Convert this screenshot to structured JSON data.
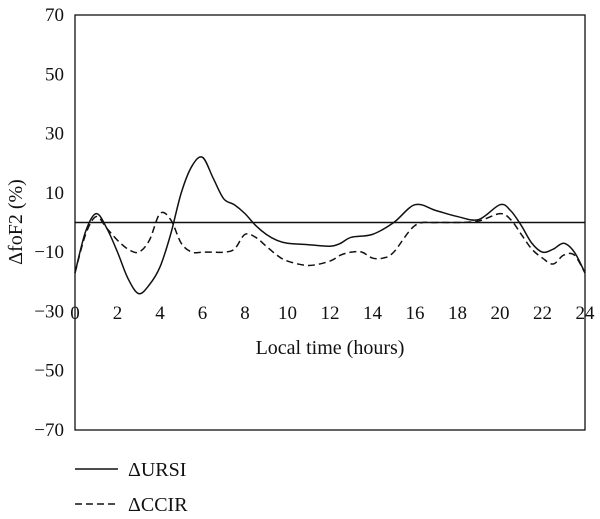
{
  "chart_data": {
    "type": "line",
    "title": "",
    "xlabel": "Local time (hours)",
    "ylabel": "ΔfoF2 (%)",
    "xlim": [
      0,
      24
    ],
    "ylim": [
      -70,
      70
    ],
    "xticks": [
      0,
      2,
      4,
      6,
      8,
      10,
      12,
      14,
      16,
      18,
      20,
      22,
      24
    ],
    "xtick_labels": [
      "0",
      "2",
      "4",
      "6",
      "8",
      "10",
      "12",
      "14",
      "16",
      "18",
      "20",
      "22",
      "24"
    ],
    "yticks": [
      70,
      50,
      30,
      10,
      -10,
      -30,
      -50,
      -70
    ],
    "ytick_labels": [
      "70",
      "50",
      "30",
      "10",
      "−10",
      "−30",
      "−50",
      "−70"
    ],
    "reference_line_y": 0,
    "grid": false,
    "legend_position": "bottom-left, below plot",
    "series": [
      {
        "name": "ΔURSI",
        "style": "solid",
        "color": "#111111",
        "x": [
          0,
          0.5,
          1,
          1.5,
          2,
          2.5,
          3,
          3.5,
          4,
          4.5,
          5,
          5.5,
          6,
          6.5,
          7,
          7.5,
          8,
          8.5,
          9,
          9.5,
          10,
          11,
          12,
          12.5,
          13,
          14,
          15,
          16,
          17,
          18,
          19,
          20,
          20.5,
          21,
          21.5,
          22,
          22.5,
          23,
          23.5,
          24
        ],
        "y": [
          -17,
          -3,
          3,
          -2,
          -10,
          -19,
          -24,
          -21,
          -15,
          -4,
          10,
          19,
          22,
          15,
          8,
          6,
          3,
          -1,
          -4,
          -6,
          -7,
          -7.5,
          -8,
          -7,
          -5,
          -4,
          0,
          6,
          4,
          2,
          1,
          6,
          4,
          -1,
          -7,
          -10,
          -9,
          -7,
          -10,
          -17
        ]
      },
      {
        "name": "ΔCCIR",
        "style": "dashed",
        "color": "#111111",
        "x": [
          0,
          0.5,
          1,
          1.5,
          2,
          2.5,
          3,
          3.5,
          4,
          4.5,
          5,
          5.5,
          6,
          6.5,
          7,
          7.5,
          8,
          8.5,
          9,
          9.5,
          10,
          11,
          12,
          12.5,
          13,
          13.5,
          14,
          14.5,
          15,
          16,
          17,
          18,
          19,
          20,
          20.5,
          21,
          21.5,
          22,
          22.5,
          23,
          23.5,
          24
        ],
        "y": [
          -17,
          -4,
          2,
          -2,
          -6,
          -9,
          -10,
          -6,
          3,
          1,
          -7,
          -10,
          -10,
          -10,
          -10,
          -9,
          -4,
          -5,
          -8,
          -11,
          -13,
          -14.5,
          -13,
          -11,
          -10,
          -10,
          -12,
          -12,
          -10,
          -1,
          0,
          0,
          0.5,
          3,
          1,
          -4,
          -9,
          -12,
          -14,
          -11,
          -11,
          -17
        ]
      }
    ]
  }
}
